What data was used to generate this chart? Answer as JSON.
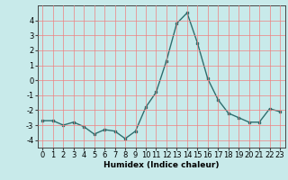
{
  "x": [
    0,
    1,
    2,
    3,
    4,
    5,
    6,
    7,
    8,
    9,
    10,
    11,
    12,
    13,
    14,
    15,
    16,
    17,
    18,
    19,
    20,
    21,
    22,
    23
  ],
  "y": [
    -2.7,
    -2.7,
    -3.0,
    -2.8,
    -3.1,
    -3.6,
    -3.3,
    -3.4,
    -3.9,
    -3.4,
    -1.8,
    -0.8,
    1.3,
    3.8,
    4.5,
    2.5,
    0.1,
    -1.3,
    -2.2,
    -2.5,
    -2.8,
    -2.8,
    -1.9,
    -2.1
  ],
  "line_color": "#2d6e6e",
  "marker": "s",
  "marker_size": 2,
  "bg_color": "#c8eaea",
  "grid_color": "#f08080",
  "xlabel": "Humidex (Indice chaleur)",
  "xlim": [
    -0.5,
    23.5
  ],
  "ylim": [
    -4.5,
    5.0
  ],
  "yticks": [
    -4,
    -3,
    -2,
    -1,
    0,
    1,
    2,
    3,
    4
  ],
  "xticks": [
    0,
    1,
    2,
    3,
    4,
    5,
    6,
    7,
    8,
    9,
    10,
    11,
    12,
    13,
    14,
    15,
    16,
    17,
    18,
    19,
    20,
    21,
    22,
    23
  ],
  "xlabel_fontsize": 6.5,
  "tick_fontsize": 6,
  "linewidth": 1.0
}
